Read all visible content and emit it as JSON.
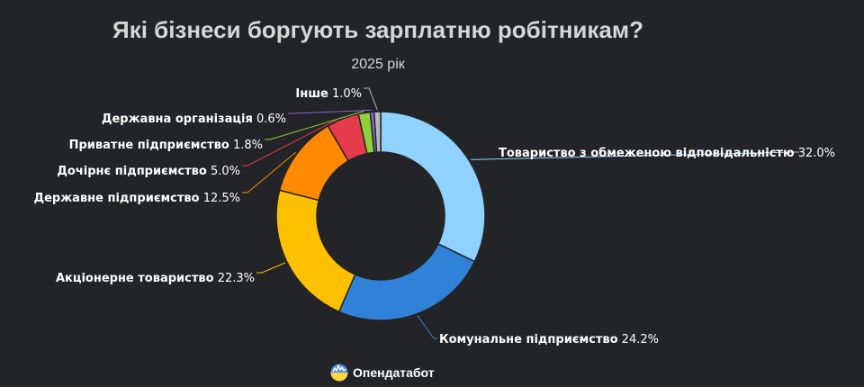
{
  "brand": {
    "name": "Опендатабот",
    "logo_icon": "opendatabot-logo-icon"
  },
  "chart_data": {
    "type": "pie",
    "title": "Які бізнеси боргують зарплатню робітникам?",
    "subtitle": "2025 рік",
    "donut": true,
    "start_angle_deg": 0,
    "direction": "clockwise",
    "slices": [
      {
        "label": "Товариство з обмеженою відповідальністю",
        "value": 32.0,
        "display": "32.0%",
        "color": "#8fd1ff"
      },
      {
        "label": "Комунальне підприємство",
        "value": 24.2,
        "display": "24.2%",
        "color": "#2f82d8"
      },
      {
        "label": "Акціонерне товариство",
        "value": 22.3,
        "display": "22.3%",
        "color": "#ffc000"
      },
      {
        "label": "Державне підприємство",
        "value": 12.5,
        "display": "12.5%",
        "color": "#ff8a00"
      },
      {
        "label": "Дочірнє підприємство",
        "value": 5.0,
        "display": "5.0%",
        "color": "#e53b4b"
      },
      {
        "label": "Приватне підприємство",
        "value": 1.8,
        "display": "1.8%",
        "color": "#8fd13a"
      },
      {
        "label": "Державна організація",
        "value": 0.6,
        "display": "0.6%",
        "color": "#8a68c8"
      },
      {
        "label": "Інше",
        "value": 1.0,
        "display": "1.0%",
        "color": "#b8b8c0"
      }
    ]
  }
}
